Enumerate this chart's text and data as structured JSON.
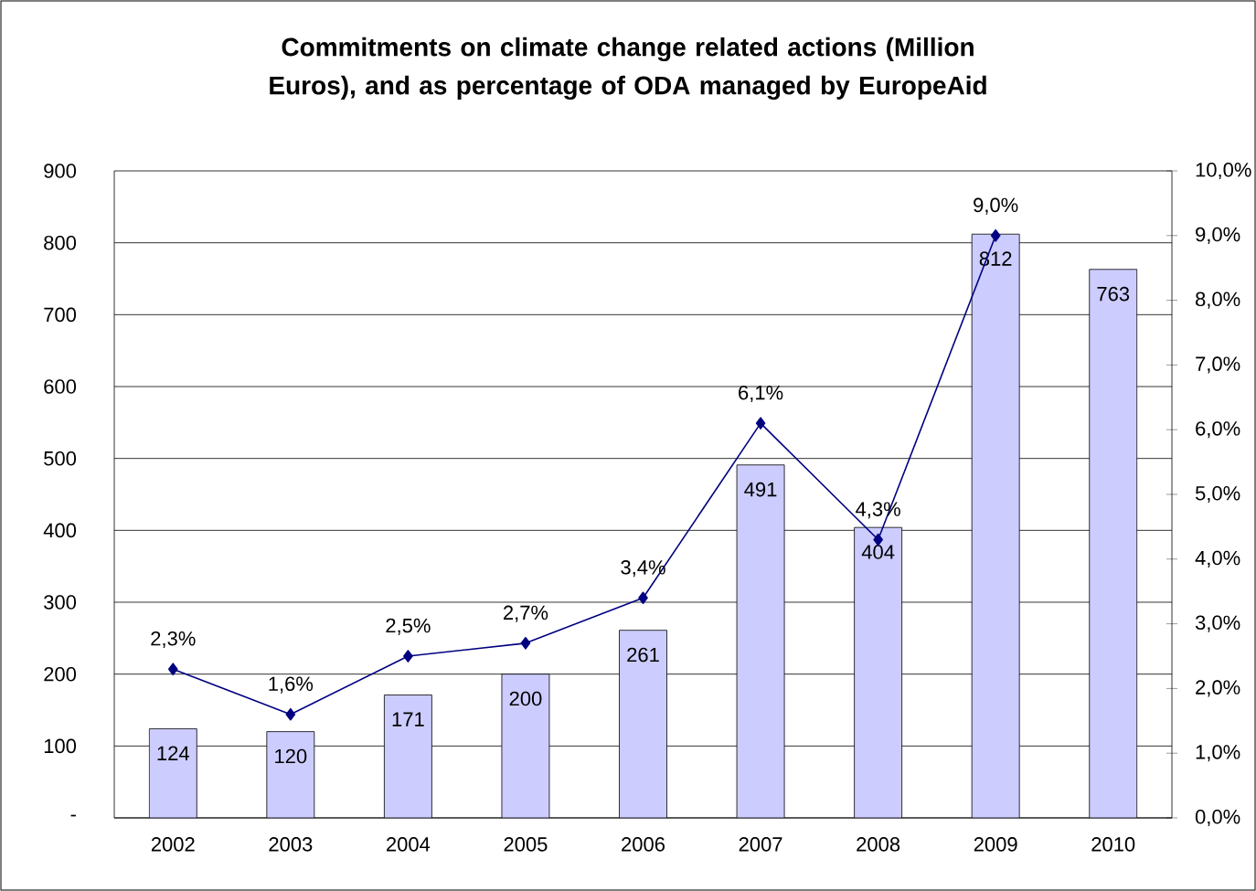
{
  "chart_data": {
    "type": "bar",
    "title": "Commitments on climate change related actions (Million Euros), and as percentage of ODA managed by EuropeAid",
    "categories": [
      "2002",
      "2003",
      "2004",
      "2005",
      "2006",
      "2007",
      "2008",
      "2009",
      "2010"
    ],
    "series": [
      {
        "type": "bar",
        "color": "#ccccff",
        "values": [
          124,
          120,
          171,
          200,
          261,
          491,
          404,
          812,
          763
        ],
        "value_labels": [
          "124",
          "120",
          "171",
          "200",
          "261",
          "491",
          "404",
          "812",
          "763"
        ]
      },
      {
        "type": "line",
        "axis": "y2",
        "color": "#000080",
        "values": [
          2.3,
          1.6,
          2.5,
          2.7,
          3.4,
          6.1,
          4.3,
          9.0,
          null
        ],
        "value_labels": [
          "2,3%",
          "1,6%",
          "2,5%",
          "2,7%",
          "3,4%",
          "6,1%",
          "4,3%",
          "9,0%",
          null
        ]
      }
    ],
    "ylim": [
      0,
      900
    ],
    "yticks": [
      {
        "value": 0,
        "label": "-"
      },
      100,
      200,
      300,
      400,
      500,
      600,
      700,
      800,
      900
    ],
    "y2lim": [
      0,
      10
    ],
    "y2ticks": [
      {
        "value": 0,
        "label": "0,0%"
      },
      {
        "value": 1,
        "label": "1,0%"
      },
      {
        "value": 2,
        "label": "2,0%"
      },
      {
        "value": 3,
        "label": "3,0%"
      },
      {
        "value": 4,
        "label": "4,0%"
      },
      {
        "value": 5,
        "label": "5,0%"
      },
      {
        "value": 6,
        "label": "6,0%"
      },
      {
        "value": 7,
        "label": "7,0%"
      },
      {
        "value": 8,
        "label": "8,0%"
      },
      {
        "value": 9,
        "label": "9,0%"
      },
      {
        "value": 10,
        "label": "10,0%"
      }
    ],
    "grid": "y",
    "marker": "diamond",
    "line_style": "solid"
  }
}
